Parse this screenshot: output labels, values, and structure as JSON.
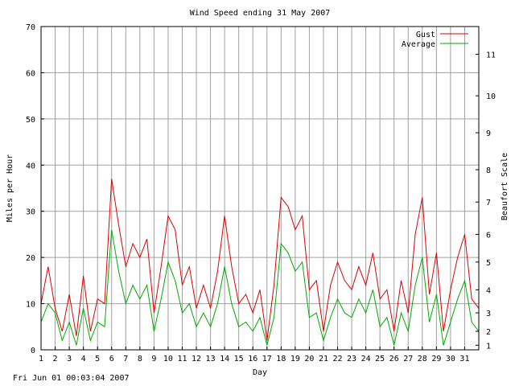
{
  "chart_data": {
    "type": "line",
    "title": "Wind Speed ending 31 May 2007",
    "xlabel": "Day",
    "ylabel": "Miles per Hour",
    "y2label": "Beaufort Scale",
    "xlim": [
      1,
      32
    ],
    "ylim": [
      0,
      70
    ],
    "x_ticks": [
      1,
      2,
      3,
      4,
      5,
      6,
      7,
      8,
      9,
      10,
      11,
      12,
      13,
      14,
      15,
      16,
      17,
      18,
      19,
      20,
      21,
      22,
      23,
      24,
      25,
      26,
      27,
      28,
      29,
      30,
      31
    ],
    "y_ticks": [
      0,
      10,
      20,
      30,
      40,
      50,
      60,
      70
    ],
    "beaufort_ticks": [
      {
        "label": "1",
        "mph": 1
      },
      {
        "label": "2",
        "mph": 4
      },
      {
        "label": "3",
        "mph": 8
      },
      {
        "label": "4",
        "mph": 13
      },
      {
        "label": "5",
        "mph": 19
      },
      {
        "label": "6",
        "mph": 25
      },
      {
        "label": "7",
        "mph": 32
      },
      {
        "label": "8",
        "mph": 39
      },
      {
        "label": "9",
        "mph": 47
      },
      {
        "label": "10",
        "mph": 55
      },
      {
        "label": "11",
        "mph": 64
      }
    ],
    "grid": true,
    "legend_position": "top-right",
    "series": [
      {
        "name": "Gust",
        "color": "#dd0000",
        "x": [
          1,
          1.5,
          2,
          2.5,
          3,
          3.5,
          4,
          4.5,
          5,
          5.5,
          6,
          6.5,
          7,
          7.5,
          8,
          8.5,
          9,
          9.5,
          10,
          10.5,
          11,
          11.5,
          12,
          12.5,
          13,
          13.5,
          14,
          14.5,
          15,
          15.5,
          16,
          16.5,
          17,
          17.5,
          18,
          18.5,
          19,
          19.5,
          20,
          20.5,
          21,
          21.5,
          22,
          22.5,
          23,
          23.5,
          24,
          24.5,
          25,
          25.5,
          26,
          26.5,
          27,
          27.5,
          28,
          28.5,
          29,
          29.5,
          30,
          30.5,
          31,
          31.5,
          32
        ],
        "values": [
          10,
          18,
          9,
          4,
          12,
          3,
          16,
          4,
          11,
          10,
          37,
          27,
          18,
          23,
          20,
          24,
          8,
          18,
          29,
          26,
          14,
          18,
          9,
          14,
          9,
          17,
          29,
          18,
          10,
          12,
          8,
          13,
          2,
          14,
          33,
          31,
          26,
          29,
          13,
          15,
          4,
          14,
          19,
          15,
          13,
          18,
          14,
          21,
          11,
          13,
          4,
          15,
          8,
          25,
          33,
          12,
          21,
          4,
          13,
          20,
          25,
          11,
          9
        ]
      },
      {
        "name": "Average",
        "color": "#00aa00",
        "x": [
          1,
          1.5,
          2,
          2.5,
          3,
          3.5,
          4,
          4.5,
          5,
          5.5,
          6,
          6.5,
          7,
          7.5,
          8,
          8.5,
          9,
          9.5,
          10,
          10.5,
          11,
          11.5,
          12,
          12.5,
          13,
          13.5,
          14,
          14.5,
          15,
          15.5,
          16,
          16.5,
          17,
          17.5,
          18,
          18.5,
          19,
          19.5,
          20,
          20.5,
          21,
          21.5,
          22,
          22.5,
          23,
          23.5,
          24,
          24.5,
          25,
          25.5,
          26,
          26.5,
          27,
          27.5,
          28,
          28.5,
          29,
          29.5,
          30,
          30.5,
          31,
          31.5,
          32
        ],
        "values": [
          6,
          10,
          8,
          2,
          6,
          1,
          9,
          2,
          6,
          5,
          26,
          17,
          10,
          14,
          11,
          14,
          4,
          11,
          19,
          15,
          8,
          10,
          5,
          8,
          5,
          10,
          18,
          10,
          5,
          6,
          4,
          7,
          1,
          7,
          23,
          21,
          17,
          19,
          7,
          8,
          2,
          7,
          11,
          8,
          7,
          11,
          8,
          13,
          5,
          7,
          1,
          8,
          4,
          14,
          20,
          6,
          12,
          1,
          6,
          11,
          15,
          6,
          4
        ]
      }
    ]
  },
  "footer": "Fri Jun 01 00:03:04 2007"
}
